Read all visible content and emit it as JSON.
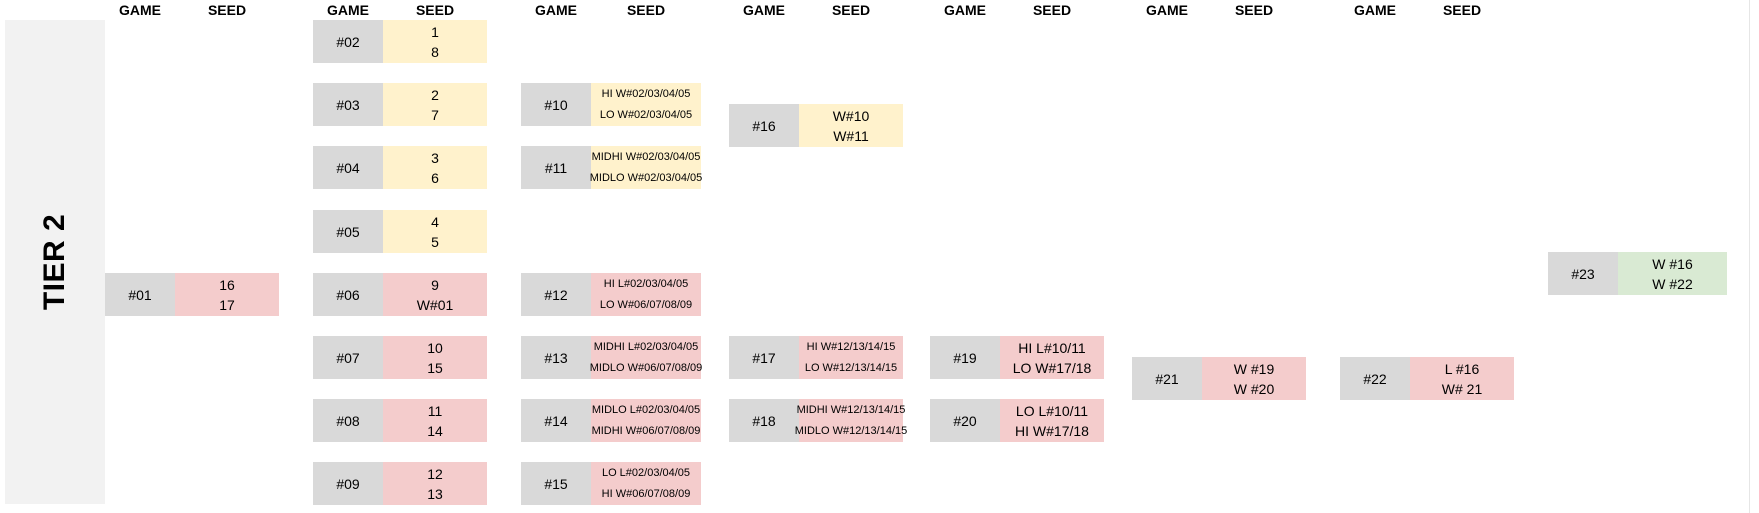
{
  "headers": {
    "game": "GAME",
    "seed": "SEED"
  },
  "tier_label": "TIER 2",
  "colors": {
    "yellow": "#fff2cc",
    "red": "#f4cccc",
    "green": "#d9ead3",
    "gray": "#d9d9d9",
    "tier_bg": "#f2f2f2"
  },
  "games": {
    "g01": {
      "label": "#01",
      "line1": "16",
      "line2": "17"
    },
    "g02": {
      "label": "#02",
      "line1": "1",
      "line2": "8"
    },
    "g03": {
      "label": "#03",
      "line1": "2",
      "line2": "7"
    },
    "g04": {
      "label": "#04",
      "line1": "3",
      "line2": "6"
    },
    "g05": {
      "label": "#05",
      "line1": "4",
      "line2": "5"
    },
    "g06": {
      "label": "#06",
      "line1": "9",
      "line2": "W#01"
    },
    "g07": {
      "label": "#07",
      "line1": "10",
      "line2": "15"
    },
    "g08": {
      "label": "#08",
      "line1": "11",
      "line2": "14"
    },
    "g09": {
      "label": "#09",
      "line1": "12",
      "line2": "13"
    },
    "g10": {
      "label": "#10",
      "line1": "HI W#02/03/04/05",
      "line2": "LO W#02/03/04/05"
    },
    "g11": {
      "label": "#11",
      "line1": "MIDHI W#02/03/04/05",
      "line2": "MIDLO W#02/03/04/05"
    },
    "g12": {
      "label": "#12",
      "line1": "HI L#02/03/04/05",
      "line2": "LO W#06/07/08/09"
    },
    "g13": {
      "label": "#13",
      "line1": "MIDHI L#02/03/04/05",
      "line2": "MIDLO W#06/07/08/09"
    },
    "g14": {
      "label": "#14",
      "line1": "MIDLO L#02/03/04/05",
      "line2": "MIDHI W#06/07/08/09"
    },
    "g15": {
      "label": "#15",
      "line1": "LO L#02/03/04/05",
      "line2": "HI W#06/07/08/09"
    },
    "g16": {
      "label": "#16",
      "line1": "W#10",
      "line2": "W#11"
    },
    "g17": {
      "label": "#17",
      "line1": "HI W#12/13/14/15",
      "line2": "LO W#12/13/14/15"
    },
    "g18": {
      "label": "#18",
      "line1": "MIDHI W#12/13/14/15",
      "line2": "MIDLO W#12/13/14/15"
    },
    "g19": {
      "label": "#19",
      "line1": "HI L#10/11",
      "line2": "LO W#17/18"
    },
    "g20": {
      "label": "#20",
      "line1": "LO L#10/11",
      "line2": "HI W#17/18"
    },
    "g21": {
      "label": "#21",
      "line1": "W #19",
      "line2": "W #20"
    },
    "g22": {
      "label": "#22",
      "line1": "L #16",
      "line2": "W# 21"
    },
    "g23": {
      "label": "#23",
      "line1": "W #16",
      "line2": "W #22"
    }
  }
}
